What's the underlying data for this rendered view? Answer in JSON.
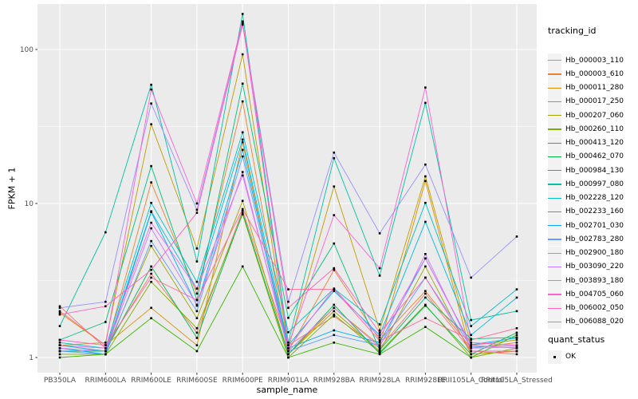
{
  "figure": {
    "background": "#FFFFFF",
    "panel_background": "#EBEBEB",
    "grid_color": "#FFFFFF",
    "tick_color": "#333333",
    "tick_label_color": "#4D4D4D",
    "axis_title_color": "#000000"
  },
  "chart_data": {
    "type": "line",
    "title": "",
    "xlabel": "sample_name",
    "ylabel": "FPKM + 1",
    "y_scale": "log10",
    "y_ticks": [
      1,
      10,
      100
    ],
    "y_tick_labels": [
      "1",
      "10",
      "100"
    ],
    "y_minor_ticks": [
      3.1623,
      31.623
    ],
    "ylim": [
      1,
      195
    ],
    "grid": true,
    "legend_position": "right",
    "point_shape": "filled-square",
    "point_color": "#000000",
    "categories": [
      "PB350LA",
      "RRIM600LA",
      "RRIM600LE",
      "RRIM600SE",
      "RRIM600PE",
      "RRIM901LA",
      "RRIM928BA",
      "RRIM928LA",
      "RRIM928LE",
      "RRII105LA_Control",
      "RRII105LA_Stressed"
    ],
    "series": [
      {
        "name": "Hb_000003_110",
        "color": "#F8766D",
        "values": [
          2.15,
          1.15,
          3.5,
          1.45,
          9.0,
          1.2,
          1.85,
          1.15,
          2.6,
          1.1,
          1.05
        ]
      },
      {
        "name": "Hb_000003_610",
        "color": "#EA8331",
        "values": [
          1.2,
          1.1,
          13.7,
          2.6,
          46,
          1.1,
          3.7,
          1.3,
          2.7,
          1.15,
          1.25
        ]
      },
      {
        "name": "Hb_000011_280",
        "color": "#D89000",
        "values": [
          1.95,
          1.2,
          2.1,
          1.2,
          25,
          1.05,
          2.1,
          1.2,
          14.0,
          1.05,
          1.1
        ]
      },
      {
        "name": "Hb_000017_250",
        "color": "#C09B00",
        "values": [
          1.2,
          1.25,
          32.7,
          5.1,
          93,
          1.15,
          12.9,
          1.5,
          15.0,
          1.2,
          1.3
        ]
      },
      {
        "name": "Hb_000207_060",
        "color": "#A3A500",
        "values": [
          1.1,
          1.1,
          5.3,
          1.8,
          10.4,
          1.05,
          2.0,
          1.1,
          3.9,
          1.05,
          1.1
        ]
      },
      {
        "name": "Hb_000260_110",
        "color": "#7CAE00",
        "values": [
          1.05,
          1.05,
          3.1,
          1.55,
          8.5,
          1.0,
          1.9,
          1.08,
          2.2,
          1.0,
          1.15
        ]
      },
      {
        "name": "Hb_000413_120",
        "color": "#39B600",
        "values": [
          1.0,
          1.05,
          1.8,
          1.1,
          3.9,
          1.0,
          1.25,
          1.05,
          1.58,
          1.0,
          1.4
        ]
      },
      {
        "name": "Hb_000462_070",
        "color": "#00BB4E",
        "values": [
          1.1,
          1.1,
          3.9,
          1.34,
          8.7,
          1.05,
          2.2,
          1.06,
          2.17,
          1.05,
          1.45
        ]
      },
      {
        "name": "Hb_000984_130",
        "color": "#00BF7D",
        "values": [
          1.3,
          1.7,
          17.5,
          2.36,
          60,
          1.81,
          5.5,
          1.12,
          2.45,
          1.32,
          1.35
        ]
      },
      {
        "name": "Hb_000997_080",
        "color": "#00C1A3",
        "values": [
          1.6,
          6.5,
          59,
          4.2,
          170,
          1.25,
          19.7,
          3.4,
          45,
          1.75,
          2.0
        ]
      },
      {
        "name": "Hb_002228_120",
        "color": "#00BFC4",
        "values": [
          1.25,
          1.15,
          10.1,
          3.1,
          29,
          1.46,
          2.8,
          1.64,
          10.1,
          1.6,
          2.77
        ]
      },
      {
        "name": "Hb_002233_160",
        "color": "#00B8E7",
        "values": [
          1.2,
          1.1,
          8.9,
          2.8,
          26,
          1.2,
          2.7,
          1.4,
          7.6,
          1.4,
          2.45
        ]
      },
      {
        "name": "Hb_002701_030",
        "color": "#00ACFC",
        "values": [
          1.15,
          1.05,
          8.8,
          2.17,
          22.3,
          1.15,
          1.5,
          1.25,
          4.4,
          1.21,
          1.34
        ]
      },
      {
        "name": "Hb_002783_280",
        "color": "#619CFF",
        "values": [
          1.1,
          1.05,
          5.7,
          2.0,
          20.2,
          1.1,
          1.4,
          1.2,
          3.3,
          1.17,
          1.2
        ]
      },
      {
        "name": "Hb_002900_180",
        "color": "#9590FF",
        "values": [
          2.1,
          2.3,
          44.6,
          9.1,
          148,
          2.3,
          21.4,
          6.4,
          17.9,
          3.3,
          6.1
        ]
      },
      {
        "name": "Hb_003090_220",
        "color": "#C77CFF",
        "values": [
          1.15,
          1.1,
          6.9,
          2.2,
          16,
          1.1,
          2.1,
          1.17,
          4.7,
          1.15,
          1.17
        ]
      },
      {
        "name": "Hb_003893_180",
        "color": "#E76BF3",
        "values": [
          1.2,
          1.15,
          7.5,
          2.8,
          15.2,
          1.15,
          2.8,
          1.35,
          4.4,
          1.2,
          1.15
        ]
      },
      {
        "name": "Hb_004705_060",
        "color": "#FD61D1",
        "values": [
          1.3,
          1.2,
          55,
          10.0,
          152,
          1.2,
          8.4,
          3.8,
          56.6,
          1.25,
          1.2
        ]
      },
      {
        "name": "Hb_006002_050",
        "color": "#FF62BC",
        "values": [
          1.9,
          2.15,
          3.7,
          8.7,
          145,
          2.1,
          3.8,
          1.45,
          3.3,
          1.1,
          1.1
        ]
      },
      {
        "name": "Hb_006088_020",
        "color": "#FF6A98",
        "values": [
          2.0,
          1.2,
          3.3,
          2.36,
          9.2,
          2.77,
          2.77,
          1.28,
          1.8,
          1.3,
          1.55
        ]
      }
    ],
    "legend": {
      "series_title": "tracking_id",
      "shape_title": "quant_status",
      "shape_label": "OK"
    }
  }
}
